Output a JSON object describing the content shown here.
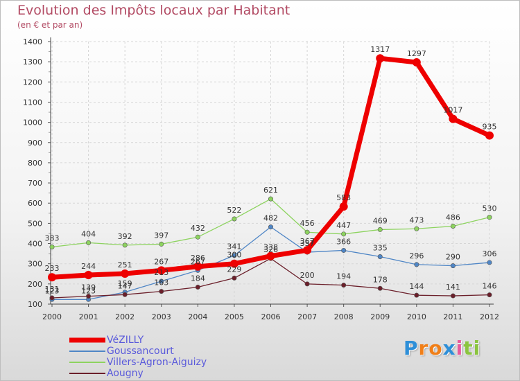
{
  "chart_data": {
    "type": "line",
    "title": "Evolution des Impôts locaux par Habitant",
    "subtitle": "(en € et par an)",
    "x": [
      "2000",
      "2001",
      "2002",
      "2003",
      "2004",
      "2005",
      "2006",
      "2007",
      "2008",
      "2009",
      "2010",
      "2011",
      "2012"
    ],
    "ylim": [
      100,
      1400
    ],
    "yticks": [
      100,
      200,
      300,
      400,
      500,
      600,
      700,
      800,
      900,
      1000,
      1100,
      1200,
      1300,
      1400
    ],
    "grid": true,
    "legend_position": "bottom-left",
    "series": [
      {
        "name": "Villers-Agron-Aiguizy",
        "color": "#8dd35f",
        "width": 1.3,
        "values": [
          383,
          404,
          392,
          397,
          432,
          522,
          621,
          456,
          447,
          469,
          473,
          486,
          530
        ]
      },
      {
        "name": "Goussancourt",
        "color": "#4f86c6",
        "width": 1.3,
        "values": [
          123,
          123,
          159,
          213,
          267,
          341,
          482,
          357,
          366,
          335,
          296,
          290,
          306
        ]
      },
      {
        "name": "Aougny",
        "color": "#6b1f2a",
        "width": 1.3,
        "values": [
          131,
          139,
          147,
          163,
          184,
          229,
          326,
          200,
          194,
          178,
          144,
          141,
          146
        ]
      },
      {
        "name": "VéZILLY",
        "color": "#ee0000",
        "width": 7,
        "values": [
          233,
          244,
          251,
          267,
          286,
          300,
          338,
          367,
          583,
          1317,
          1297,
          1017,
          935
        ]
      }
    ]
  },
  "legend": {
    "order": [
      3,
      1,
      0,
      2
    ]
  },
  "brand": {
    "letters": [
      "P",
      "r",
      "o",
      "x",
      "i",
      "t",
      "i"
    ],
    "colors": [
      "#2e8fd8",
      "#f07f19",
      "#f07f19",
      "#2e8fd8",
      "#e85a9c",
      "#8bc43f",
      "#8bc43f"
    ]
  }
}
